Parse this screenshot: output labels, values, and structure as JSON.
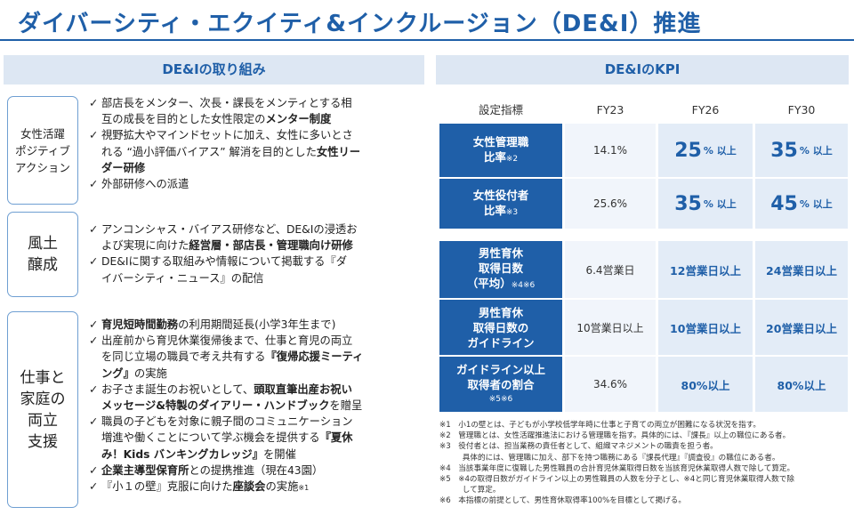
{
  "title": "ダイバーシティ・エクイティ&インクルージョン（DE&I）推進",
  "left": {
    "header": "DE&Iの取り組み",
    "categories": [
      {
        "lines": [
          "女性活躍",
          "ポジティブ",
          "アクション"
        ]
      },
      {
        "lines": [
          "風土",
          "醸成"
        ]
      },
      {
        "lines": [
          "仕事と",
          "家庭の",
          "両立",
          "支援"
        ]
      }
    ],
    "check": "✓",
    "g1": {
      "b1_l1": "部店長をメンター、次長・課長をメンティとする相",
      "b1_l2a": "互の成長を目的とした女性限定の",
      "b1_l2b": "メンター制度",
      "b2_l1": "視野拡大やマインドセットに加え、女性に多いとさ",
      "b2_l2a": "れる “過小評価バイアス” 解消を目的とした",
      "b2_l2b": "女性リー",
      "b2_l3": "ダー研修",
      "b3_l1": "外部研修への派遣"
    },
    "g2": {
      "b1_l1": "アンコンシャス・バイアス研修など、DE&Iの浸透お",
      "b1_l2a": "よび実現に向けた",
      "b1_l2b": "経営層・部店長・管理職向け研修",
      "b2_l1": "DE&Iに関する取組みや情報について掲載する『ダ",
      "b2_l2": "イバーシティ・ニュース』の配信"
    },
    "g3": {
      "b1_a": "育児短時間勤務",
      "b1_b": "の利用期間延長(小学3年生まで)",
      "b2_l1": "出産前から育児休業復帰後まで、仕事と育児の両立",
      "b2_l2": "を同じ立場の職員で考え共有する",
      "b2_l2b": "『復帰応援ミーティ",
      "b2_l3a": "ング』",
      "b2_l3b": "の実施",
      "b3_l1a": "お子さま誕生のお祝いとして、",
      "b3_l1b": "頭取直筆出産お祝い",
      "b3_l2a": "メッセージ&特製のダイアリー・ハンドブック",
      "b3_l2b": "を贈呈",
      "b4_l1": "職員の子どもを対象に親子間のコミュニケーション",
      "b4_l2a": "増進や働くことについて学ぶ機会を提供する",
      "b4_l2b": "『夏休",
      "b4_l3a": "み！Kids バンキングカレッジ』",
      "b4_l3b": "を開催",
      "b5_a": "企業主導型保育所",
      "b5_b": "との提携推進（現在43園）",
      "b6_a": "『小１の壁』克服に向けた",
      "b6_b": "座談会",
      "b6_c": "の実施",
      "b6_note": "※1"
    }
  },
  "right": {
    "header": "DE&IのKPI",
    "col_headers": [
      "設定指標",
      "FY23",
      "FY26",
      "FY30"
    ],
    "rows": [
      {
        "l1": "女性管理職",
        "l2": "比率",
        "note": "※2",
        "fy23": "14.1%",
        "fy26_num": "25",
        "fy26_suf": "% 以上",
        "fy30_num": "35",
        "fy30_suf": "% 以上"
      },
      {
        "l1": "女性役付者",
        "l2": "比率",
        "note": "※3",
        "fy23": "25.6%",
        "fy26_num": "35",
        "fy26_suf": "% 以上",
        "fy30_num": "45",
        "fy30_suf": "% 以上"
      },
      {
        "l1": "男性育休",
        "l2": "取得日数",
        "l3": "（平均）",
        "note": "※4※6",
        "fy23": "6.4営業日",
        "fy26": "12営業日以上",
        "fy30": "24営業日以上"
      },
      {
        "l1": "男性育休",
        "l2": "取得日数の",
        "l3": "ガイドライン",
        "fy23": "10営業日以上",
        "fy26": "10営業日以上",
        "fy30": "20営業日以上"
      },
      {
        "l1": "ガイドライン以上",
        "l2": "取得者の割合",
        "note": "※5※6",
        "fy23": "34.6%",
        "fy26": "80%以上",
        "fy30": "80%以上"
      }
    ],
    "notes": [
      "※1　小1の壁とは、子どもが小学校低学年時に仕事と子育ての両立が困難になる状況を指す。",
      "※2　管理職とは、女性活躍推進法における管理職を指す。具体的には、『課長』以上の職位にある者。",
      "※3　役付者とは、担当業務の責任者として、組織マネジメントの職責を担う者。",
      "　　　具体的には、管理職に加え、部下を持つ職務にある『課長代理』『調査役』の職位にある者。",
      "※4　当該事業年度に復職した男性職員の合計育児休業取得日数を当該育児休業取得人数で除して算定。",
      "※5　※4の取得日数がガイドライン以上の男性職員の人数を分子とし、※4と同じ育児休業取得人数で除",
      "　　　して算定。",
      "※6　本指標の前提として、男性育休取得率100%を目標として掲げる。"
    ]
  }
}
